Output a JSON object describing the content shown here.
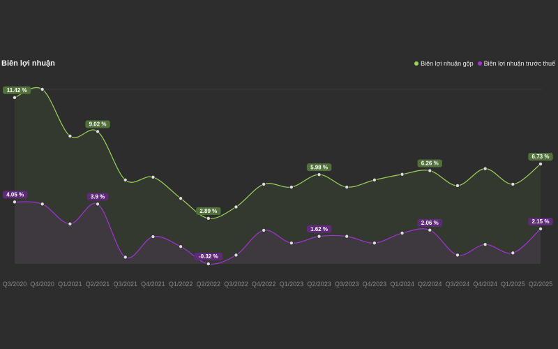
{
  "chart_data": {
    "type": "line",
    "title": "Biên lợi nhuận",
    "categories": [
      "Q3/2020",
      "Q4/2020",
      "Q1/2021",
      "Q2/2021",
      "Q3/2021",
      "Q4/2021",
      "Q1/2022",
      "Q2/2022",
      "Q3/2022",
      "Q4/2022",
      "Q1/2023",
      "Q2/2023",
      "Q3/2023",
      "Q4/2023",
      "Q1/2024",
      "Q2/2024",
      "Q3/2024",
      "Q4/2024",
      "Q1/2025",
      "Q2/2025"
    ],
    "series": [
      {
        "name": "Biên lợi nhuận gộp",
        "color": "#9bd35a",
        "label_bg": "#51703a",
        "values": [
          11.42,
          12.0,
          8.7,
          9.02,
          5.6,
          5.8,
          4.3,
          2.89,
          3.7,
          5.3,
          5.1,
          5.98,
          5.1,
          5.6,
          6.0,
          6.26,
          5.2,
          6.4,
          5.3,
          6.73
        ],
        "labels": {
          "0": "11.42 %",
          "3": "9.02 %",
          "7": "2.89 %",
          "11": "5.98 %",
          "15": "6.26 %",
          "19": "6.73 %"
        }
      },
      {
        "name": "Biên lợi nhuận trước thuế",
        "color": "#a233d6",
        "label_bg": "#5f2a78",
        "values": [
          4.05,
          3.9,
          2.5,
          3.9,
          0.15,
          1.6,
          0.9,
          -0.32,
          0.3,
          2.05,
          1.15,
          1.62,
          1.62,
          1.15,
          1.85,
          2.06,
          0.3,
          1.05,
          0.45,
          2.15
        ],
        "labels": {
          "0": "4.05 %",
          "3": "3.9 %",
          "7": "-0.32 %",
          "11": "1.62 %",
          "15": "2.06 %",
          "19": "2.15 %"
        }
      }
    ],
    "ylim": [
      -0.32,
      12.0
    ],
    "legend_position": "top-right",
    "grid": false
  }
}
